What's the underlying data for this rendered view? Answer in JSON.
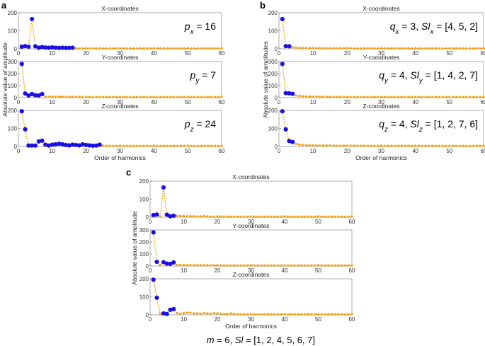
{
  "chart_data": [
    {
      "panel": "a",
      "type": "line",
      "xlabel": "Order of harmonics",
      "ylabel": "Absolute value of amplitude",
      "xlim": [
        0,
        60
      ],
      "x_ticks": [
        0,
        10,
        20,
        30,
        40,
        50,
        60
      ],
      "subplots": [
        {
          "title": "X-coordinates",
          "ylim": [
            0,
            200
          ],
          "y_ticks": [
            0,
            100,
            200
          ],
          "annotation": {
            "symbol": "p",
            "sub": "x",
            "rest": " = 16"
          },
          "highlight_count": 16,
          "values": [
            12,
            15,
            12,
            165,
            14,
            6,
            10,
            7,
            6,
            8,
            6,
            5,
            6,
            5,
            5,
            6,
            3,
            2,
            2,
            2,
            2,
            2,
            2,
            2,
            2,
            2,
            2,
            2,
            2,
            2,
            2,
            2,
            2,
            2,
            2,
            2,
            2,
            2,
            2,
            2,
            2,
            2,
            2,
            2,
            2,
            2,
            2,
            2,
            2,
            2,
            2,
            2,
            2,
            2,
            2,
            2,
            2,
            2,
            2,
            2
          ]
        },
        {
          "title": "Y-coordinates",
          "ylim": [
            0,
            300
          ],
          "y_ticks": [
            0,
            100,
            200,
            300
          ],
          "annotation": {
            "symbol": "p",
            "sub": "y",
            "rest": " = 7"
          },
          "highlight_count": 7,
          "values": [
            280,
            35,
            18,
            30,
            20,
            18,
            30,
            8,
            8,
            8,
            8,
            8,
            7,
            7,
            6,
            7,
            6,
            6,
            6,
            5,
            5,
            5,
            5,
            5,
            5,
            5,
            5,
            5,
            5,
            5,
            5,
            5,
            5,
            5,
            5,
            5,
            5,
            5,
            5,
            5,
            5,
            5,
            5,
            5,
            5,
            5,
            5,
            5,
            5,
            5,
            5,
            5,
            5,
            5,
            5,
            5,
            5,
            5,
            5,
            5
          ]
        },
        {
          "title": "Z-coordinates",
          "ylim": [
            0,
            200
          ],
          "y_ticks": [
            0,
            100,
            200
          ],
          "annotation": {
            "symbol": "p",
            "sub": "z",
            "rest": " = 24"
          },
          "highlight_count": 24,
          "values": [
            195,
            95,
            5,
            5,
            5,
            28,
            32,
            10,
            5,
            10,
            12,
            15,
            12,
            8,
            6,
            10,
            8,
            6,
            12,
            8,
            6,
            4,
            5,
            10,
            4,
            3,
            3,
            3,
            3,
            3,
            3,
            3,
            3,
            3,
            3,
            3,
            3,
            3,
            3,
            3,
            3,
            3,
            3,
            3,
            3,
            3,
            3,
            3,
            3,
            3,
            3,
            3,
            3,
            3,
            3,
            3,
            3,
            3,
            3,
            3
          ]
        }
      ]
    },
    {
      "panel": "b",
      "type": "line",
      "xlabel": "Order of harmonics",
      "ylabel": "Absolute value of amplitudes",
      "xlim": [
        0,
        60
      ],
      "x_ticks": [
        0,
        10,
        20,
        30,
        40,
        50,
        60
      ],
      "subplots": [
        {
          "title": "X-coordinates",
          "ylim": [
            0,
            200
          ],
          "y_ticks": [
            0,
            100,
            200
          ],
          "annotation": {
            "symbol": "q",
            "sub": "x",
            "rest": " = 3, ",
            "symbol2": "Sl",
            "sub2": "x",
            "rest2": " = [4, 5, 2]"
          },
          "highlight_count": 3,
          "values": [
            165,
            15,
            14,
            8,
            7,
            5,
            5,
            4,
            4,
            4,
            4,
            3,
            3,
            3,
            3,
            3,
            3,
            3,
            3,
            3,
            3,
            2,
            2,
            2,
            2,
            2,
            2,
            2,
            2,
            2,
            2,
            2,
            2,
            2,
            2,
            2,
            2,
            2,
            2,
            2,
            2,
            2,
            2,
            2,
            2,
            2,
            2,
            2,
            2,
            2,
            2,
            2,
            2,
            2,
            2,
            2,
            2,
            2,
            2,
            2
          ]
        },
        {
          "title": "Y-coordinates",
          "ylim": [
            0,
            300
          ],
          "y_ticks": [
            0,
            100,
            200,
            300
          ],
          "annotation": {
            "symbol": "q",
            "sub": "y",
            "rest": " = 4, ",
            "symbol2": "Sl",
            "sub2": "y",
            "rest2": " = [1, 4, 2, 7]"
          },
          "highlight_count": 4,
          "values": [
            280,
            38,
            36,
            32,
            18,
            14,
            12,
            10,
            9,
            8,
            8,
            7,
            7,
            6,
            6,
            6,
            6,
            6,
            5,
            5,
            5,
            5,
            5,
            5,
            5,
            5,
            5,
            5,
            5,
            5,
            5,
            5,
            5,
            5,
            5,
            5,
            5,
            5,
            5,
            5,
            5,
            5,
            5,
            5,
            5,
            5,
            5,
            5,
            5,
            5,
            5,
            5,
            5,
            5,
            5,
            5,
            5,
            5,
            5,
            5
          ]
        },
        {
          "title": "Z-coordinates",
          "ylim": [
            0,
            200
          ],
          "y_ticks": [
            0,
            100,
            200
          ],
          "annotation": {
            "symbol": "q",
            "sub": "z",
            "rest": " = 4, ",
            "symbol2": "Sl",
            "sub2": "z",
            "rest2": " = [1, 2, 7, 6]"
          },
          "highlight_count": 4,
          "values": [
            195,
            95,
            30,
            25,
            14,
            10,
            8,
            7,
            6,
            6,
            5,
            5,
            5,
            5,
            5,
            4,
            4,
            4,
            4,
            4,
            4,
            4,
            4,
            4,
            4,
            4,
            3,
            3,
            3,
            3,
            3,
            3,
            3,
            3,
            3,
            3,
            3,
            3,
            3,
            3,
            3,
            3,
            3,
            3,
            3,
            3,
            3,
            3,
            3,
            3,
            3,
            3,
            3,
            3,
            3,
            3,
            3,
            3,
            3,
            3
          ]
        }
      ]
    },
    {
      "panel": "c",
      "type": "line",
      "xlabel": "Order of harmonics",
      "ylabel": "Absolute value of amplitude",
      "xlim": [
        0,
        60
      ],
      "x_ticks": [
        0,
        10,
        20,
        30,
        40,
        50,
        60
      ],
      "highlight_indices": [
        1,
        2,
        4,
        5,
        6,
        7
      ],
      "caption": {
        "symbol": "m",
        "rest": " = 6, ",
        "symbol2": "Sl",
        "rest2": " = [1, 2, 4, 5, 6, 7]"
      },
      "subplots": [
        {
          "title": "X-coordinates",
          "ylim": [
            0,
            200
          ],
          "y_ticks": [
            0,
            100,
            200
          ],
          "values": [
            12,
            15,
            3,
            165,
            14,
            5,
            8,
            8,
            7,
            6,
            5,
            5,
            5,
            4,
            4,
            6,
            4,
            3,
            3,
            3,
            3,
            3,
            3,
            3,
            3,
            3,
            3,
            3,
            3,
            3,
            3,
            3,
            3,
            3,
            3,
            3,
            3,
            3,
            3,
            3,
            3,
            3,
            3,
            3,
            3,
            3,
            3,
            3,
            3,
            3,
            3,
            3,
            3,
            3,
            3,
            3,
            3,
            3,
            3,
            3
          ]
        },
        {
          "title": "Y-coordinates",
          "ylim": [
            0,
            300
          ],
          "y_ticks": [
            0,
            100,
            200,
            300
          ],
          "values": [
            280,
            35,
            8,
            32,
            20,
            18,
            30,
            8,
            8,
            8,
            8,
            8,
            7,
            7,
            6,
            7,
            6,
            6,
            6,
            5,
            5,
            5,
            5,
            5,
            5,
            5,
            5,
            5,
            5,
            5,
            5,
            5,
            5,
            5,
            5,
            5,
            5,
            5,
            5,
            5,
            5,
            5,
            5,
            5,
            5,
            5,
            5,
            5,
            5,
            5,
            5,
            5,
            5,
            5,
            5,
            5,
            5,
            5,
            5,
            5
          ]
        },
        {
          "title": "Z-coordinates",
          "ylim": [
            0,
            200
          ],
          "y_ticks": [
            0,
            100,
            200
          ],
          "values": [
            195,
            95,
            5,
            8,
            5,
            28,
            32,
            10,
            5,
            10,
            12,
            12,
            8,
            8,
            6,
            10,
            8,
            6,
            10,
            8,
            6,
            4,
            5,
            8,
            4,
            3,
            3,
            3,
            3,
            3,
            3,
            3,
            3,
            3,
            3,
            3,
            3,
            3,
            3,
            3,
            3,
            3,
            3,
            3,
            3,
            3,
            3,
            3,
            3,
            3,
            3,
            3,
            3,
            3,
            3,
            3,
            3,
            3,
            3,
            3
          ]
        }
      ]
    }
  ],
  "colors": {
    "highlight": "#1a0fe0",
    "base": "#f2a51a",
    "line": "#f2a51a",
    "axis": "#444444"
  }
}
